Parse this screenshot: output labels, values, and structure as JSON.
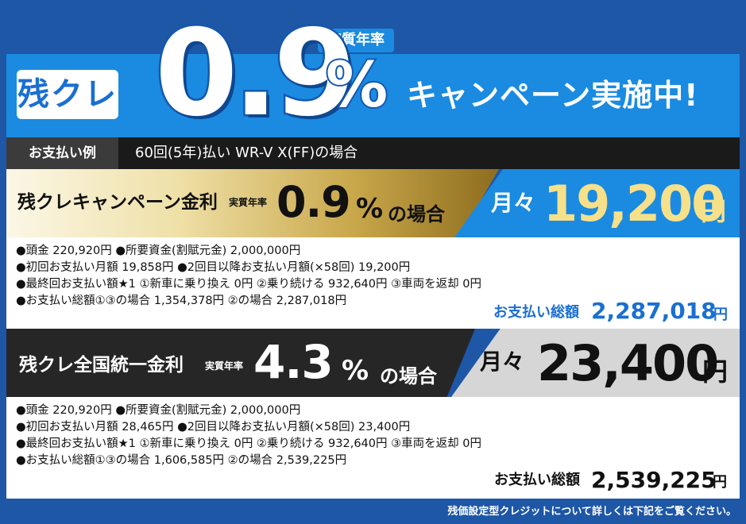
{
  "header": {
    "badge": "残クレ",
    "rate": "0.9",
    "percent": "%",
    "tag": "実質年率",
    "campaign": "キャンペーン実施中!"
  },
  "example": {
    "label": "お支払い例",
    "text": "60回(5年)払い WR-V X(FF)の場合"
  },
  "campaign_offer": {
    "title": "残クレキャンペーン金利",
    "tag": "実質年率",
    "rate": "0.9",
    "percent": "%",
    "suffix": "の場合",
    "monthly_label": "月々",
    "monthly_amount": "19,200",
    "yen": "円",
    "details": [
      "●頭金 220,920円 ●所要資金(割賦元金) 2,000,000円",
      "●初回お支払い月額 19,858円 ●2回目以降お支払い月額(×58回) 19,200円",
      "●最終回お支払い額★1 ①新車に乗り換え 0円 ②乗り続ける 932,640円 ③車両を返却 0円",
      "●お支払い総額①③の場合 1,354,378円 ②の場合 2,287,018円"
    ],
    "total_label": "お支払い総額",
    "total": "2,287,018",
    "total_yen": "円"
  },
  "national_offer": {
    "title": "残クレ全国統一金利",
    "tag": "実質年率",
    "rate": "4.3",
    "percent": "%",
    "suffix": "の場合",
    "monthly_label": "月々",
    "monthly_amount": "23,400",
    "yen": "円",
    "details": [
      "●頭金 220,920円 ●所要資金(割賦元金) 2,000,000円",
      "●初回お支払い月額 28,465円 ●2回目以降お支払い月額(×58回) 23,400円",
      "●最終回お支払い額★1 ①新車に乗り換え 0円 ②乗り続ける 932,640円 ③車両を返却 0円",
      "●お支払い総額①③の場合 1,606,585円 ②の場合 2,539,225円"
    ],
    "total_label": "お支払い総額",
    "total": "2,539,225",
    "total_yen": "円"
  },
  "footer": "残価設定型クレジットについて詳しくは下記をご覧ください。",
  "colors": {
    "brand_blue": "#1a8be0",
    "navy": "#1d57a6",
    "gold": "#c9a84b",
    "dark": "#262626"
  }
}
